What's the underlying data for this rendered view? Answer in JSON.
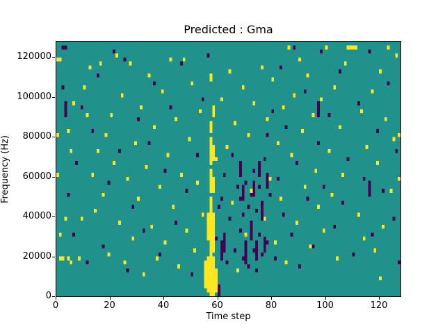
{
  "chart_data": {
    "type": "heatmap",
    "title": "Predicted : Gma",
    "xlabel": "Time step",
    "ylabel": "Frequency (Hz)",
    "xlim": [
      0,
      128
    ],
    "ylim": [
      0,
      128000
    ],
    "x_ticks": [
      0,
      20,
      40,
      60,
      80,
      100,
      120
    ],
    "y_ticks": [
      0,
      20000,
      40000,
      60000,
      80000,
      100000,
      120000
    ],
    "grid": {
      "time_steps": 128,
      "freq_bins": 64,
      "bin_hz": 2000,
      "gridlines": "off",
      "legend": "none"
    },
    "colors": {
      "background": "#21918c",
      "high": "#fde725",
      "low": "#440154",
      "axes": "#000000",
      "figure_bg": "#ffffff"
    },
    "cells": {
      "comment_units": "cells are [time_step, freq_bin]; freq = bin * 2000 Hz; runs are [time_step, bin_start, bin_end]",
      "yellow": [
        [
          0,
          59
        ],
        [
          1,
          59
        ],
        [
          1,
          9
        ],
        [
          2,
          9
        ],
        [
          4,
          9
        ],
        [
          5,
          8
        ],
        [
          0,
          40
        ],
        [
          0,
          30
        ],
        [
          1,
          15
        ],
        [
          3,
          19
        ],
        [
          4,
          41
        ],
        [
          5,
          36
        ],
        [
          6,
          48
        ],
        [
          8,
          9
        ],
        [
          9,
          19
        ],
        [
          10,
          52
        ],
        [
          11,
          45
        ],
        [
          12,
          57
        ],
        [
          13,
          30
        ],
        [
          14,
          21
        ],
        [
          15,
          36
        ],
        [
          16,
          58
        ],
        [
          17,
          25
        ],
        [
          18,
          40
        ],
        [
          19,
          10
        ],
        [
          20,
          45
        ],
        [
          21,
          33
        ],
        [
          22,
          60
        ],
        [
          23,
          18
        ],
        [
          24,
          50
        ],
        [
          25,
          8
        ],
        [
          26,
          29
        ],
        [
          27,
          58
        ],
        [
          28,
          14
        ],
        [
          29,
          38
        ],
        [
          30,
          24
        ],
        [
          31,
          47
        ],
        [
          32,
          5
        ],
        [
          33,
          32
        ],
        [
          34,
          55
        ],
        [
          35,
          17
        ],
        [
          36,
          42
        ],
        [
          37,
          9
        ],
        [
          38,
          27
        ],
        [
          39,
          51
        ],
        [
          40,
          13
        ],
        [
          41,
          35
        ],
        [
          42,
          59
        ],
        [
          43,
          22
        ],
        [
          44,
          44
        ],
        [
          45,
          7
        ],
        [
          46,
          30
        ],
        [
          47,
          59
        ],
        [
          48,
          16
        ],
        [
          49,
          39
        ],
        [
          50,
          53
        ],
        [
          51,
          11
        ],
        [
          52,
          28
        ],
        [
          53,
          46
        ],
        [
          54,
          20
        ],
        [
          59,
          34
        ],
        [
          61,
          49
        ],
        [
          62,
          12
        ],
        [
          63,
          37
        ],
        [
          64,
          56
        ],
        [
          65,
          23
        ],
        [
          66,
          43
        ],
        [
          67,
          6
        ],
        [
          68,
          31
        ],
        [
          69,
          52
        ],
        [
          70,
          15
        ],
        [
          71,
          40
        ],
        [
          72,
          26
        ],
        [
          73,
          48
        ],
        [
          74,
          10
        ],
        [
          75,
          33
        ],
        [
          76,
          57
        ],
        [
          77,
          19
        ],
        [
          78,
          44
        ],
        [
          79,
          29
        ],
        [
          80,
          54
        ],
        [
          81,
          13
        ],
        [
          82,
          38
        ],
        [
          83,
          24
        ],
        [
          84,
          47
        ],
        [
          85,
          8
        ],
        [
          86,
          62
        ],
        [
          87,
          35
        ],
        [
          88,
          50
        ],
        [
          89,
          18
        ],
        [
          90,
          59
        ],
        [
          91,
          41
        ],
        [
          92,
          27
        ],
        [
          93,
          55
        ],
        [
          94,
          12
        ],
        [
          95,
          45
        ],
        [
          96,
          31
        ],
        [
          97,
          22
        ],
        [
          98,
          49
        ],
        [
          99,
          16
        ],
        [
          100,
          62
        ],
        [
          101,
          36
        ],
        [
          102,
          25
        ],
        [
          103,
          52
        ],
        [
          104,
          9
        ],
        [
          105,
          42
        ],
        [
          106,
          30
        ],
        [
          107,
          58
        ],
        [
          108,
          62
        ],
        [
          109,
          62
        ],
        [
          110,
          62
        ],
        [
          111,
          62
        ],
        [
          112,
          20
        ],
        [
          113,
          46
        ],
        [
          114,
          14
        ],
        [
          115,
          37
        ],
        [
          116,
          28
        ],
        [
          117,
          51
        ],
        [
          118,
          11
        ],
        [
          119,
          33
        ],
        [
          120,
          56
        ],
        [
          120,
          4
        ],
        [
          121,
          17
        ],
        [
          122,
          44
        ],
        [
          123,
          62
        ],
        [
          124,
          26
        ],
        [
          125,
          39
        ],
        [
          126,
          60
        ],
        [
          127,
          40
        ],
        [
          127,
          29
        ]
      ],
      "dark": [
        [
          2,
          62
        ],
        [
          3,
          62
        ],
        [
          2,
          52
        ],
        [
          4,
          25
        ],
        [
          6,
          15
        ],
        [
          7,
          33
        ],
        [
          9,
          47
        ],
        [
          11,
          8
        ],
        [
          13,
          41
        ],
        [
          15,
          55
        ],
        [
          17,
          12
        ],
        [
          19,
          28
        ],
        [
          21,
          61
        ],
        [
          23,
          36
        ],
        [
          25,
          59
        ],
        [
          26,
          6
        ],
        [
          28,
          22
        ],
        [
          30,
          44
        ],
        [
          32,
          16
        ],
        [
          34,
          38
        ],
        [
          36,
          53
        ],
        [
          38,
          10
        ],
        [
          40,
          31
        ],
        [
          42,
          47
        ],
        [
          44,
          18
        ],
        [
          46,
          58
        ],
        [
          48,
          26
        ],
        [
          50,
          5
        ],
        [
          52,
          35
        ],
        [
          54,
          49
        ],
        [
          56,
          60
        ],
        [
          59,
          14
        ],
        [
          60,
          22
        ],
        [
          61,
          24
        ],
        [
          62,
          30
        ],
        [
          63,
          8
        ],
        [
          64,
          19
        ],
        [
          65,
          35
        ],
        [
          66,
          11
        ],
        [
          67,
          27
        ],
        [
          68,
          16
        ],
        [
          68,
          24
        ],
        [
          69,
          9
        ],
        [
          69,
          20
        ],
        [
          70,
          13
        ],
        [
          70,
          28
        ],
        [
          71,
          7
        ],
        [
          71,
          22
        ],
        [
          72,
          17
        ],
        [
          72,
          25
        ],
        [
          73,
          11
        ],
        [
          73,
          31
        ],
        [
          74,
          6
        ],
        [
          74,
          21
        ],
        [
          75,
          15
        ],
        [
          75,
          27
        ],
        [
          76,
          10
        ],
        [
          76,
          23
        ],
        [
          77,
          34
        ],
        [
          78,
          13
        ],
        [
          78,
          40
        ],
        [
          79,
          25
        ],
        [
          80,
          46
        ],
        [
          81,
          9
        ],
        [
          82,
          29
        ],
        [
          83,
          57
        ],
        [
          84,
          20
        ],
        [
          85,
          42
        ],
        [
          87,
          15
        ],
        [
          88,
          62
        ],
        [
          89,
          33
        ],
        [
          90,
          7
        ],
        [
          92,
          51
        ],
        [
          93,
          24
        ],
        [
          95,
          12
        ],
        [
          97,
          38
        ],
        [
          98,
          61
        ],
        [
          99,
          27
        ],
        [
          101,
          45
        ],
        [
          103,
          17
        ],
        [
          105,
          56
        ],
        [
          106,
          23
        ],
        [
          108,
          34
        ],
        [
          110,
          10
        ],
        [
          112,
          48
        ],
        [
          114,
          29
        ],
        [
          116,
          61
        ],
        [
          117,
          15
        ],
        [
          119,
          41
        ],
        [
          121,
          26
        ],
        [
          123,
          53
        ],
        [
          125,
          19
        ],
        [
          126,
          36
        ],
        [
          127,
          8
        ]
      ],
      "yellow_runs": [
        [
          55,
          2,
          8
        ],
        [
          56,
          1,
          9
        ],
        [
          57,
          0,
          10
        ],
        [
          58,
          0,
          9
        ],
        [
          59,
          1,
          6
        ],
        [
          56,
          14,
          20
        ],
        [
          57,
          11,
          24
        ],
        [
          58,
          11,
          20
        ],
        [
          57,
          26,
          31
        ],
        [
          58,
          26,
          29
        ],
        [
          57,
          33,
          39
        ],
        [
          58,
          34,
          37
        ],
        [
          57,
          41,
          43
        ],
        [
          58,
          45,
          47
        ],
        [
          57,
          54,
          55
        ]
      ],
      "dark_runs": [
        [
          3,
          45,
          48
        ],
        [
          60,
          0,
          2
        ],
        [
          61,
          9,
          13
        ],
        [
          62,
          11,
          15
        ],
        [
          68,
          30,
          33
        ],
        [
          69,
          24,
          27
        ],
        [
          70,
          8,
          12
        ],
        [
          72,
          14,
          18
        ],
        [
          73,
          25,
          28
        ],
        [
          74,
          9,
          13
        ],
        [
          75,
          30,
          33
        ],
        [
          76,
          19,
          22
        ],
        [
          77,
          11,
          14
        ],
        [
          78,
          27,
          30
        ],
        [
          97,
          45,
          48
        ],
        [
          116,
          25,
          28
        ]
      ]
    }
  }
}
